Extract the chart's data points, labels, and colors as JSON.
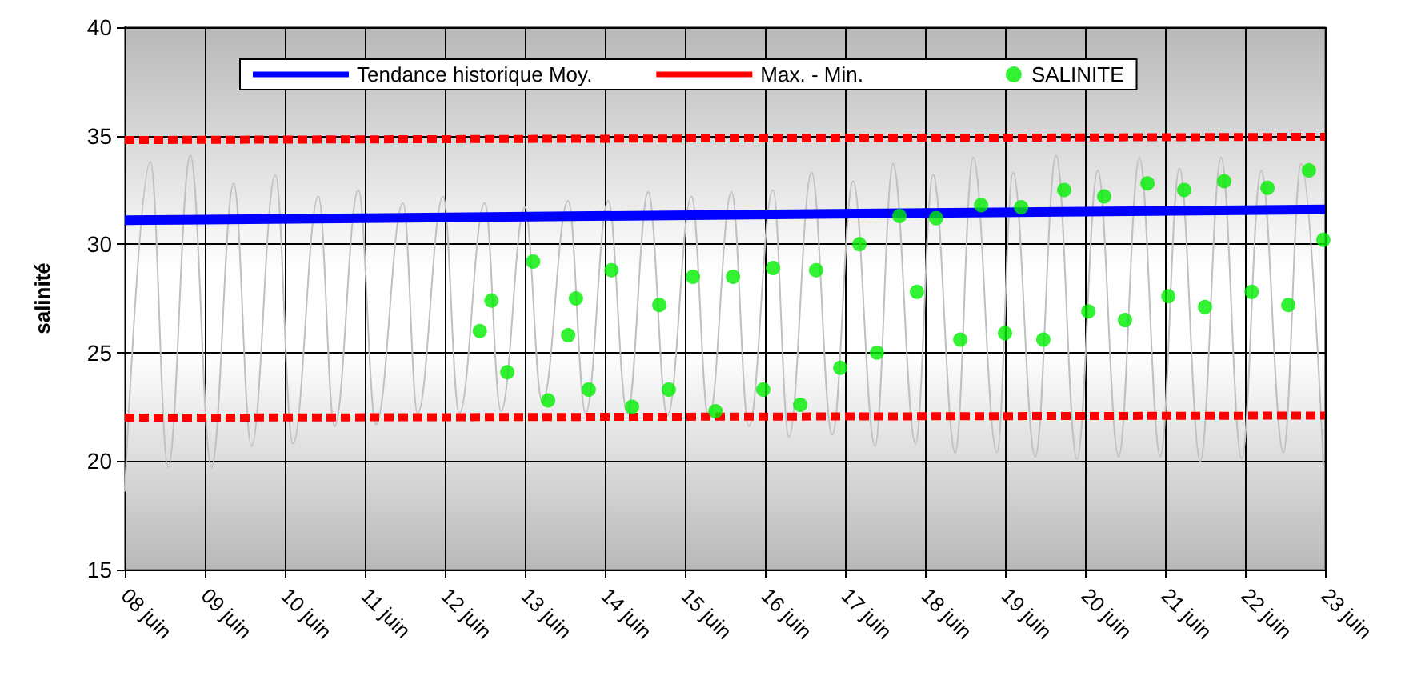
{
  "chart_data": {
    "type": "line",
    "ylabel": "salinité",
    "ylim": [
      15,
      40
    ],
    "yticks": [
      15,
      20,
      25,
      30,
      35,
      40
    ],
    "grid": true,
    "legend": "top",
    "xlim": [
      "--06-08",
      "--06-23"
    ],
    "xticks": [
      {
        "value": "--06-08",
        "label": "08 juin"
      },
      {
        "value": "--06-09",
        "label": "09 juin"
      },
      {
        "value": "--06-10",
        "label": "10 juin"
      },
      {
        "value": "--06-11",
        "label": "11 juin"
      },
      {
        "value": "--06-12",
        "label": "12 juin"
      },
      {
        "value": "--06-13",
        "label": "13 juin"
      },
      {
        "value": "--06-14",
        "label": "14 juin"
      },
      {
        "value": "--06-15",
        "label": "15 juin"
      },
      {
        "value": "--06-16",
        "label": "16 juin"
      },
      {
        "value": "--06-17",
        "label": "17 juin"
      },
      {
        "value": "--06-18",
        "label": "18 juin"
      },
      {
        "value": "--06-19",
        "label": "19 juin"
      },
      {
        "value": "--06-20",
        "label": "20 juin"
      },
      {
        "value": "--06-21",
        "label": "21 juin"
      },
      {
        "value": "--06-22",
        "label": "22 juin"
      },
      {
        "value": "--06-23",
        "label": "23 juin"
      }
    ],
    "series": [
      {
        "color": "#c0c0c0",
        "marker": "none",
        "line_style": "solid",
        "x": [
          "--06-08T00:00",
          "--06-08T07:40",
          "--06-08T13:00",
          "--06-08T19:40",
          "--06-09T02:00",
          "--06-09T08:40",
          "--06-09T14:00",
          "--06-09T21:10",
          "--06-10T02:25",
          "--06-10T10:05",
          "--06-10T14:55",
          "--06-10T22:05",
          "--06-11T03:20",
          "--06-11T11:30",
          "--06-11T15:50",
          "--06-11T23:30",
          "--06-12T04:20",
          "--06-12T12:00",
          "--06-12T16:50",
          "--06-13T00:00",
          "--06-13T05:15",
          "--06-13T13:00",
          "--06-13T18:15",
          "--06-14T01:00",
          "--06-14T06:45",
          "--06-14T13:00",
          "--06-14T18:45",
          "--06-15T02:00",
          "--06-15T07:10",
          "--06-15T14:00",
          "--06-15T19:10",
          "--06-16T02:25",
          "--06-16T07:10",
          "--06-16T14:00",
          "--06-16T20:10",
          "--06-17T02:25",
          "--06-17T09:00",
          "--06-17T14:25",
          "--06-17T21:10",
          "--06-18T02:25",
          "--06-18T09:05",
          "--06-18T14:25",
          "--06-18T21:35",
          "--06-19T02:25",
          "--06-19T09:05",
          "--06-19T15:20",
          "--06-19T21:35",
          "--06-20T03:50",
          "--06-20T10:05",
          "--06-20T16:20",
          "--06-20T22:35",
          "--06-21T04:20",
          "--06-21T10:35",
          "--06-21T16:50",
          "--06-21T23:00",
          "--06-22T04:50",
          "--06-22T11:30",
          "--06-22T16:50",
          "--06-22T23:30"
        ],
        "values": [
          18.6,
          33.8,
          19.7,
          34.1,
          19.7,
          32.8,
          20.7,
          33.2,
          20.8,
          32.2,
          21.6,
          32.5,
          21.7,
          31.9,
          22.2,
          32.2,
          22.2,
          31.9,
          22.3,
          31.7,
          22.7,
          32.0,
          22.2,
          32.0,
          22.2,
          32.4,
          22.1,
          32.2,
          21.9,
          32.4,
          21.6,
          32.5,
          21.1,
          33.3,
          21.2,
          32.9,
          20.7,
          33.7,
          20.8,
          33.2,
          20.4,
          34.0,
          20.4,
          33.3,
          20.2,
          34.1,
          20.1,
          33.4,
          20.2,
          34.0,
          20.2,
          33.5,
          20.0,
          34.0,
          20.1,
          33.4,
          20.4,
          33.7,
          19.8
        ]
      },
      {
        "name": "Tendance historique Moy.",
        "color": "#0000ff",
        "marker": "none",
        "line_style": "solid",
        "x": [
          "--06-08T00:00",
          "--06-23T00:00"
        ],
        "values": [
          31.1,
          31.6
        ]
      },
      {
        "name": "Max. - Min.",
        "color": "#ff0000",
        "marker": "none",
        "line_style": "dashed",
        "x": [
          "--06-08T00:00",
          "--06-23T00:00"
        ],
        "values": [
          34.8,
          34.95
        ]
      },
      {
        "color": "#ff0000",
        "marker": "none",
        "line_style": "dashed",
        "x": [
          "--06-08T00:00",
          "--06-23T00:00"
        ],
        "values": [
          22.0,
          22.1
        ]
      },
      {
        "type": "scatter",
        "name": "SALINITE",
        "color": "#00ee00",
        "marker": "circle",
        "x": [
          "--06-12T10:30",
          "--06-12T14:00",
          "--06-12T18:45",
          "--06-13T02:30",
          "--06-13T07:00",
          "--06-13T13:00",
          "--06-13T15:20",
          "--06-13T19:10",
          "--06-14T02:00",
          "--06-14T08:10",
          "--06-14T16:20",
          "--06-14T19:10",
          "--06-15T02:25",
          "--06-15T09:10",
          "--06-15T14:25",
          "--06-15T23:30",
          "--06-16T02:25",
          "--06-16T10:35",
          "--06-16T15:20",
          "--06-16T22:35",
          "--06-17T04:20",
          "--06-17T09:35",
          "--06-17T16:20",
          "--06-17T21:35",
          "--06-18T03:20",
          "--06-18T10:35",
          "--06-18T16:50",
          "--06-19T00:00",
          "--06-19T04:50",
          "--06-19T11:30",
          "--06-19T17:45",
          "--06-20T01:00",
          "--06-20T05:45",
          "--06-20T12:00",
          "--06-20T18:45",
          "--06-21T01:00",
          "--06-21T05:45",
          "--06-21T12:00",
          "--06-21T17:45",
          "--06-22T02:00",
          "--06-22T06:45",
          "--06-22T13:00",
          "--06-22T19:10",
          "--06-22T23:30"
        ],
        "values": [
          26.0,
          27.4,
          24.1,
          29.2,
          22.8,
          25.8,
          27.5,
          23.3,
          28.8,
          22.5,
          27.2,
          23.3,
          28.5,
          22.3,
          28.5,
          23.3,
          28.9,
          22.6,
          28.8,
          24.3,
          30.0,
          25.0,
          31.3,
          27.8,
          31.2,
          25.6,
          31.8,
          25.9,
          31.7,
          25.6,
          32.5,
          26.9,
          32.2,
          26.5,
          32.8,
          27.6,
          32.5,
          27.1,
          32.9,
          27.8,
          32.6,
          27.2,
          33.4,
          30.2
        ]
      }
    ]
  }
}
